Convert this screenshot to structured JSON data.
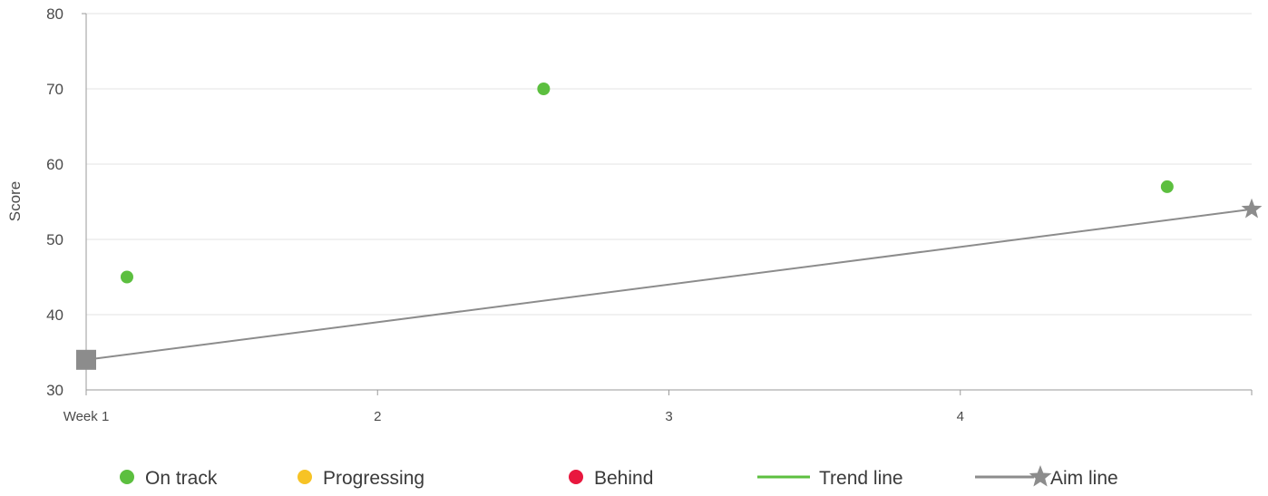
{
  "chart_data": {
    "type": "scatter",
    "title": "",
    "xlabel": "",
    "ylabel": "Score",
    "x_ticks": [
      {
        "x": 1,
        "label": "Week 1"
      },
      {
        "x": 2,
        "label": "2"
      },
      {
        "x": 3,
        "label": "3"
      },
      {
        "x": 4,
        "label": "4"
      }
    ],
    "xlim": [
      1,
      5
    ],
    "y_ticks": [
      30,
      40,
      50,
      60,
      70,
      80
    ],
    "ylim": [
      30,
      80
    ],
    "grid": "horizontal",
    "points": [
      {
        "x": 1.14,
        "y": 45,
        "status": "On track"
      },
      {
        "x": 2.57,
        "y": 70,
        "status": "On track"
      },
      {
        "x": 4.71,
        "y": 57,
        "status": "On track"
      }
    ],
    "aim_line": {
      "start": {
        "x": 1,
        "y": 34
      },
      "end": {
        "x": 5,
        "y": 54
      }
    },
    "legend_position": "bottom",
    "legend": [
      {
        "label": "On track",
        "marker": "circle",
        "color": "#5cbf3f"
      },
      {
        "label": "Progressing",
        "marker": "circle",
        "color": "#f7c325"
      },
      {
        "label": "Behind",
        "marker": "circle",
        "color": "#e8173e"
      },
      {
        "label": "Trend line",
        "marker": "line",
        "color": "#5cbf3f"
      },
      {
        "label": "Aim line",
        "marker": "line-star",
        "color": "#8c8c8c"
      }
    ],
    "colors": {
      "on_track": "#5cbf3f",
      "aim_line": "#8c8c8c",
      "grid": "#e3e3e3",
      "axis": "#9a9a9a"
    }
  }
}
